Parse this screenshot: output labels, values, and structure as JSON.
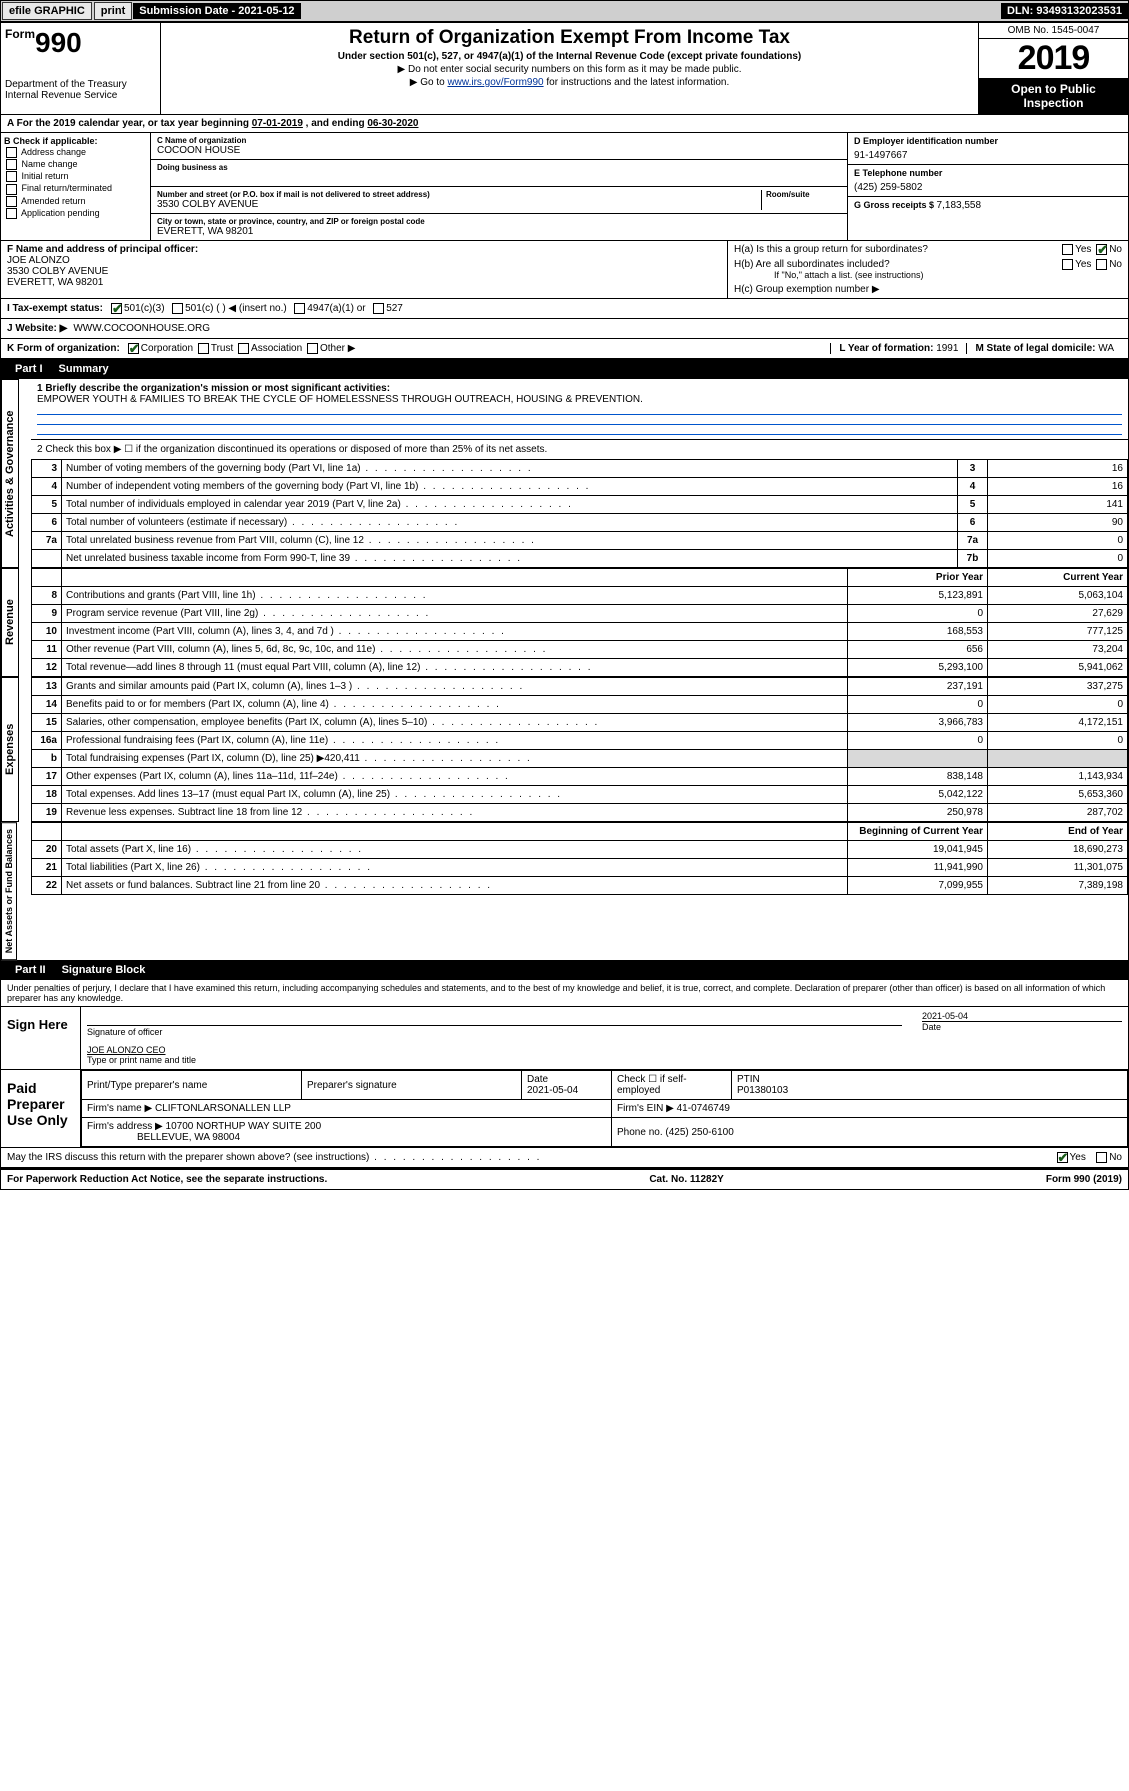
{
  "topbar": {
    "efile": "efile GRAPHIC",
    "print": "print",
    "submission_label": "Submission Date - ",
    "submission_date": "2021-05-12",
    "dln_label": "DLN: ",
    "dln": "93493132023531"
  },
  "header": {
    "form_prefix": "Form",
    "form_number": "990",
    "dept": "Department of the Treasury",
    "irs": "Internal Revenue Service",
    "title": "Return of Organization Exempt From Income Tax",
    "sub1": "Under section 501(c), 527, or 4947(a)(1) of the Internal Revenue Code (except private foundations)",
    "sub2a": "▶ Do not enter social security numbers on this form as it may be made public.",
    "sub2b_pre": "▶ Go to ",
    "sub2b_link": "www.irs.gov/Form990",
    "sub2b_post": " for instructions and the latest information.",
    "omb": "OMB No. 1545-0047",
    "year": "2019",
    "open_public": "Open to Public Inspection"
  },
  "period": {
    "text_a": "A For the 2019 calendar year, or tax year beginning ",
    "begin": "07-01-2019",
    "text_b": " , and ending ",
    "end": "06-30-2020"
  },
  "boxB": {
    "header": "B Check if applicable:",
    "opts": [
      "Address change",
      "Name change",
      "Initial return",
      "Final return/terminated",
      "Amended return",
      "Application pending"
    ]
  },
  "boxC": {
    "name_lbl": "C Name of organization",
    "name": "COCOON HOUSE",
    "dba_lbl": "Doing business as",
    "addr_lbl": "Number and street (or P.O. box if mail is not delivered to street address)",
    "room_lbl": "Room/suite",
    "street": "3530 COLBY AVENUE",
    "city_lbl": "City or town, state or province, country, and ZIP or foreign postal code",
    "city": "EVERETT, WA  98201"
  },
  "boxD": {
    "lbl": "D Employer identification number",
    "val": "91-1497667"
  },
  "boxE": {
    "lbl": "E Telephone number",
    "val": "(425) 259-5802"
  },
  "boxG": {
    "lbl": "G Gross receipts $ ",
    "val": "7,183,558"
  },
  "boxF": {
    "lbl": "F  Name and address of principal officer:",
    "name": "JOE ALONZO",
    "street": "3530 COLBY AVENUE",
    "city": "EVERETT, WA  98201"
  },
  "boxH": {
    "a": "H(a)  Is this a group return for subordinates?",
    "b": "H(b)  Are all subordinates included?",
    "b_note": "If \"No,\" attach a list. (see instructions)",
    "c": "H(c)  Group exemption number ▶",
    "yes": "Yes",
    "no": "No"
  },
  "rowI": {
    "lbl": "I   Tax-exempt status:",
    "o1": "501(c)(3)",
    "o2": "501(c) (   ) ◀ (insert no.)",
    "o3": "4947(a)(1) or",
    "o4": "527"
  },
  "rowJ": {
    "lbl": "J   Website: ▶",
    "val": "WWW.COCOONHOUSE.ORG"
  },
  "rowK": {
    "lbl": "K Form of organization:",
    "o1": "Corporation",
    "o2": "Trust",
    "o3": "Association",
    "o4": "Other ▶",
    "l_lbl": "L Year of formation: ",
    "l_val": "1991",
    "m_lbl": "M State of legal domicile: ",
    "m_val": "WA"
  },
  "part1": {
    "tab": "Part I",
    "title": "Summary",
    "q1_lbl": "1  Briefly describe the organization's mission or most significant activities:",
    "q1_val": "EMPOWER YOUTH & FAMILIES TO BREAK THE CYCLE OF HOMELESSNESS THROUGH OUTREACH, HOUSING & PREVENTION.",
    "q2": "2   Check this box ▶ ☐  if the organization discontinued its operations or disposed of more than 25% of its net assets.",
    "rows_gov": [
      {
        "n": "3",
        "d": "Number of voting members of the governing body (Part VI, line 1a)",
        "c": "3",
        "v": "16"
      },
      {
        "n": "4",
        "d": "Number of independent voting members of the governing body (Part VI, line 1b)",
        "c": "4",
        "v": "16"
      },
      {
        "n": "5",
        "d": "Total number of individuals employed in calendar year 2019 (Part V, line 2a)",
        "c": "5",
        "v": "141"
      },
      {
        "n": "6",
        "d": "Total number of volunteers (estimate if necessary)",
        "c": "6",
        "v": "90"
      },
      {
        "n": "7a",
        "d": "Total unrelated business revenue from Part VIII, column (C), line 12",
        "c": "7a",
        "v": "0"
      },
      {
        "n": "",
        "d": "Net unrelated business taxable income from Form 990-T, line 39",
        "c": "7b",
        "v": "0"
      }
    ],
    "col_hdr_prior": "Prior Year",
    "col_hdr_curr": "Current Year",
    "rows_rev": [
      {
        "n": "8",
        "d": "Contributions and grants (Part VIII, line 1h)",
        "p": "5,123,891",
        "c": "5,063,104"
      },
      {
        "n": "9",
        "d": "Program service revenue (Part VIII, line 2g)",
        "p": "0",
        "c": "27,629"
      },
      {
        "n": "10",
        "d": "Investment income (Part VIII, column (A), lines 3, 4, and 7d )",
        "p": "168,553",
        "c": "777,125"
      },
      {
        "n": "11",
        "d": "Other revenue (Part VIII, column (A), lines 5, 6d, 8c, 9c, 10c, and 11e)",
        "p": "656",
        "c": "73,204"
      },
      {
        "n": "12",
        "d": "Total revenue—add lines 8 through 11 (must equal Part VIII, column (A), line 12)",
        "p": "5,293,100",
        "c": "5,941,062"
      }
    ],
    "rows_exp": [
      {
        "n": "13",
        "d": "Grants and similar amounts paid (Part IX, column (A), lines 1–3 )",
        "p": "237,191",
        "c": "337,275"
      },
      {
        "n": "14",
        "d": "Benefits paid to or for members (Part IX, column (A), line 4)",
        "p": "0",
        "c": "0"
      },
      {
        "n": "15",
        "d": "Salaries, other compensation, employee benefits (Part IX, column (A), lines 5–10)",
        "p": "3,966,783",
        "c": "4,172,151"
      },
      {
        "n": "16a",
        "d": "Professional fundraising fees (Part IX, column (A), line 11e)",
        "p": "0",
        "c": "0"
      },
      {
        "n": "b",
        "d": "Total fundraising expenses (Part IX, column (D), line 25) ▶420,411",
        "p": "",
        "c": "",
        "shade": true
      },
      {
        "n": "17",
        "d": "Other expenses (Part IX, column (A), lines 11a–11d, 11f–24e)",
        "p": "838,148",
        "c": "1,143,934"
      },
      {
        "n": "18",
        "d": "Total expenses. Add lines 13–17 (must equal Part IX, column (A), line 25)",
        "p": "5,042,122",
        "c": "5,653,360"
      },
      {
        "n": "19",
        "d": "Revenue less expenses. Subtract line 18 from line 12",
        "p": "250,978",
        "c": "287,702"
      }
    ],
    "col_hdr_beg": "Beginning of Current Year",
    "col_hdr_end": "End of Year",
    "rows_net": [
      {
        "n": "20",
        "d": "Total assets (Part X, line 16)",
        "p": "19,041,945",
        "c": "18,690,273"
      },
      {
        "n": "21",
        "d": "Total liabilities (Part X, line 26)",
        "p": "11,941,990",
        "c": "11,301,075"
      },
      {
        "n": "22",
        "d": "Net assets or fund balances. Subtract line 21 from line 20",
        "p": "7,099,955",
        "c": "7,389,198"
      }
    ],
    "side_gov": "Activities & Governance",
    "side_rev": "Revenue",
    "side_exp": "Expenses",
    "side_net": "Net Assets or Fund Balances"
  },
  "part2": {
    "tab": "Part II",
    "title": "Signature Block",
    "decl": "Under penalties of perjury, I declare that I have examined this return, including accompanying schedules and statements, and to the best of my knowledge and belief, it is true, correct, and complete. Declaration of preparer (other than officer) is based on all information of which preparer has any knowledge.",
    "sign_here": "Sign Here",
    "sig_officer": "Signature of officer",
    "sig_date": "2021-05-04",
    "date_lbl": "Date",
    "officer_name": "JOE ALONZO  CEO",
    "type_name": "Type or print name and title",
    "paid": "Paid Preparer Use Only",
    "prep_name_lbl": "Print/Type preparer's name",
    "prep_sig_lbl": "Preparer's signature",
    "prep_date": "2021-05-04",
    "check_self": "Check ☐ if self-employed",
    "ptin_lbl": "PTIN",
    "ptin": "P01380103",
    "firm_name_lbl": "Firm's name   ▶ ",
    "firm_name": "CLIFTONLARSONALLEN LLP",
    "firm_ein_lbl": "Firm's EIN ▶ ",
    "firm_ein": "41-0746749",
    "firm_addr_lbl": "Firm's address ▶ ",
    "firm_addr1": "10700 NORTHUP WAY SUITE 200",
    "firm_addr2": "BELLEVUE, WA  98004",
    "phone_lbl": "Phone no. ",
    "phone": "(425) 250-6100",
    "discuss": "May the IRS discuss this return with the preparer shown above? (see instructions)",
    "yes": "Yes",
    "no": "No"
  },
  "footer": {
    "left": "For Paperwork Reduction Act Notice, see the separate instructions.",
    "mid": "Cat. No. 11282Y",
    "right": "Form 990 (2019)"
  }
}
